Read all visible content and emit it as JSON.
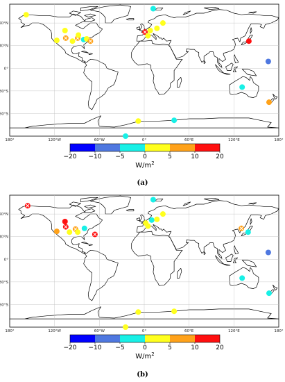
{
  "map_type": "world equirectangular coastline map with station markers",
  "axes": {
    "lon_ticks": [
      "180°",
      "120°W",
      "60°W",
      "0°",
      "60°E",
      "120°E",
      "180°"
    ],
    "lat_ticks": [
      "60°N",
      "30°N",
      "0°",
      "30°S",
      "60°S"
    ]
  },
  "colorbar": {
    "ticks": [
      "−20",
      "−10",
      "−5",
      "0",
      "5",
      "10",
      "20"
    ],
    "unit_base": "W/m",
    "unit_exp": "2",
    "bins": [
      {
        "range": [
          -20,
          -10
        ],
        "color": "#0000ff"
      },
      {
        "range": [
          -10,
          -5
        ],
        "color": "#4f78e0"
      },
      {
        "range": [
          -5,
          0
        ],
        "color": "#18f0e6"
      },
      {
        "range": [
          0,
          5
        ],
        "color": "#ffff1e"
      },
      {
        "range": [
          5,
          10
        ],
        "color": "#ffa21a"
      },
      {
        "range": [
          10,
          20
        ],
        "color": "#ff0f0f"
      }
    ]
  },
  "panels": [
    {
      "id": "a",
      "label": "(a)",
      "stations": [
        {
          "lon": -158,
          "lat": 71,
          "color": "#ffff1e",
          "cross": false
        },
        {
          "lon": -106,
          "lat": 50,
          "color": "#ffff1e",
          "cross": false
        },
        {
          "lon": -117,
          "lat": 37,
          "color": "#ffff1e",
          "cross": false
        },
        {
          "lon": -105,
          "lat": 40,
          "color": "#ffa21a",
          "cross": true
        },
        {
          "lon": -96,
          "lat": 36,
          "color": "#ffff1e",
          "cross": false
        },
        {
          "lon": -89,
          "lat": 40,
          "color": "#ffa21a",
          "cross": true
        },
        {
          "lon": -88,
          "lat": 44,
          "color": "#ffff1e",
          "cross": false
        },
        {
          "lon": -81,
          "lat": 38,
          "color": "#18f0e6",
          "cross": false
        },
        {
          "lon": -77,
          "lat": 39,
          "color": "#ffff1e",
          "cross": false
        },
        {
          "lon": -72,
          "lat": 36,
          "color": "#ffa21a",
          "cross": true
        },
        {
          "lon": 12,
          "lat": 79,
          "color": "#18f0e6",
          "cross": false
        },
        {
          "lon": 1,
          "lat": 48,
          "color": "#ff0f0f",
          "cross": true
        },
        {
          "lon": 5,
          "lat": 43,
          "color": "#ffff1e",
          "cross": false
        },
        {
          "lon": 8,
          "lat": 50,
          "color": "#ffff1e",
          "cross": false
        },
        {
          "lon": 17,
          "lat": 53,
          "color": "#ffff1e",
          "cross": false
        },
        {
          "lon": 25,
          "lat": 60,
          "color": "#ffff1e",
          "cross": false
        },
        {
          "lon": 140,
          "lat": 36,
          "color": "#ff0f0f",
          "cross": false
        },
        {
          "lon": 166,
          "lat": 9,
          "color": "#4f78e0",
          "cross": false
        },
        {
          "lon": 131,
          "lat": -25,
          "color": "#18f0e6",
          "cross": false
        },
        {
          "lon": 167,
          "lat": -45,
          "color": "#ffa21a",
          "cross": false
        },
        {
          "lon": -8,
          "lat": -70,
          "color": "#ffff1e",
          "cross": false
        },
        {
          "lon": 40,
          "lat": -69,
          "color": "#18f0e6",
          "cross": false
        },
        {
          "lon": -25,
          "lat": -90,
          "color": "#18f0e6",
          "cross": false
        }
      ]
    },
    {
      "id": "b",
      "label": "(b)",
      "stations": [
        {
          "lon": -156,
          "lat": 71,
          "color": "#ff0f0f",
          "cross": true
        },
        {
          "lon": -106,
          "lat": 50,
          "color": "#ff0f0f",
          "cross": false
        },
        {
          "lon": -105,
          "lat": 43,
          "color": "#ff0f0f",
          "cross": true
        },
        {
          "lon": -117,
          "lat": 37,
          "color": "#ffa21a",
          "cross": false
        },
        {
          "lon": -100,
          "lat": 36,
          "color": "#ffff1e",
          "cross": false
        },
        {
          "lon": -92,
          "lat": 40,
          "color": "#ffa21a",
          "cross": true
        },
        {
          "lon": -89,
          "lat": 36,
          "color": "#ffff1e",
          "cross": false
        },
        {
          "lon": -80,
          "lat": 41,
          "color": "#18f0e6",
          "cross": false
        },
        {
          "lon": -66,
          "lat": 33,
          "color": "#ff0f0f",
          "cross": true
        },
        {
          "lon": 12,
          "lat": 79,
          "color": "#18f0e6",
          "cross": false
        },
        {
          "lon": 2,
          "lat": 48,
          "color": "#ffff1e",
          "cross": false
        },
        {
          "lon": 5,
          "lat": 44,
          "color": "#ffff1e",
          "cross": false
        },
        {
          "lon": 10,
          "lat": 52,
          "color": "#18f0e6",
          "cross": false
        },
        {
          "lon": 17,
          "lat": 53,
          "color": "#ffff1e",
          "cross": false
        },
        {
          "lon": 25,
          "lat": 60,
          "color": "#ffff1e",
          "cross": false
        },
        {
          "lon": 130,
          "lat": 41,
          "color": "#ffa21a",
          "cross": true
        },
        {
          "lon": 139,
          "lat": 36,
          "color": "#18f0e6",
          "cross": false
        },
        {
          "lon": 166,
          "lat": 9,
          "color": "#4f78e0",
          "cross": false
        },
        {
          "lon": 131,
          "lat": -25,
          "color": "#18f0e6",
          "cross": false
        },
        {
          "lon": 167,
          "lat": -45,
          "color": "#18f0e6",
          "cross": false
        },
        {
          "lon": -8,
          "lat": -70,
          "color": "#ffff1e",
          "cross": false
        },
        {
          "lon": 40,
          "lat": -69,
          "color": "#ffff1e",
          "cross": false
        },
        {
          "lon": -25,
          "lat": -90,
          "color": "#ffff1e",
          "cross": false
        }
      ]
    }
  ]
}
